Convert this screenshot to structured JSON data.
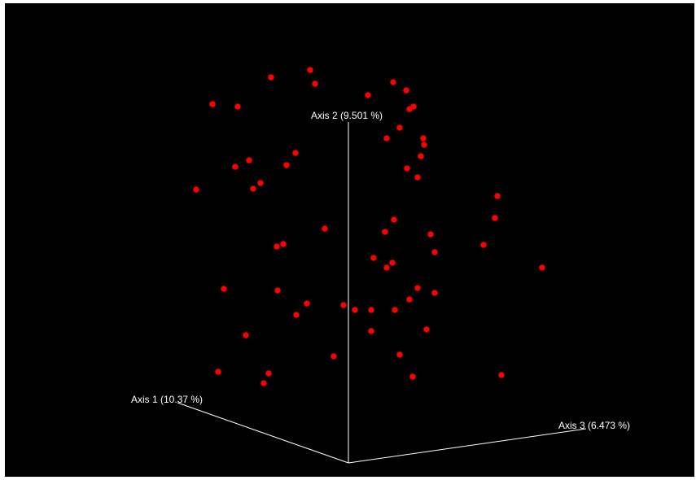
{
  "chart_data": {
    "type": "scatter",
    "title": "",
    "axes": {
      "axis1_label": "Axis 1 (10.37 %)",
      "axis2_label": "Axis 2 (9.501 %)",
      "axis3_label": "Axis 3 (6.473 %)"
    },
    "series": [
      {
        "color": "#ff0000",
        "points": [
          [
            381,
            86
          ],
          [
            333,
            95
          ],
          [
            387,
            103
          ],
          [
            483,
            101
          ],
          [
            499,
            111
          ],
          [
            452,
            117
          ],
          [
            261,
            128
          ],
          [
            292,
            131
          ],
          [
            508,
            131
          ],
          [
            503,
            134
          ],
          [
            491,
            157
          ],
          [
            475,
            170
          ],
          [
            520,
            170
          ],
          [
            521,
            178
          ],
          [
            363,
            188
          ],
          [
            517,
            192
          ],
          [
            306,
            197
          ],
          [
            289,
            205
          ],
          [
            352,
            203
          ],
          [
            500,
            207
          ],
          [
            513,
            218
          ],
          [
            320,
            225
          ],
          [
            311,
            232
          ],
          [
            241,
            233
          ],
          [
            611,
            241
          ],
          [
            608,
            268
          ],
          [
            484,
            270
          ],
          [
            399,
            281
          ],
          [
            473,
            285
          ],
          [
            529,
            288
          ],
          [
            348,
            300
          ],
          [
            340,
            303
          ],
          [
            594,
            301
          ],
          [
            534,
            310
          ],
          [
            459,
            317
          ],
          [
            482,
            323
          ],
          [
            475,
            329
          ],
          [
            666,
            329
          ],
          [
            275,
            355
          ],
          [
            341,
            357
          ],
          [
            513,
            354
          ],
          [
            534,
            360
          ],
          [
            503,
            368
          ],
          [
            377,
            373
          ],
          [
            422,
            375
          ],
          [
            436,
            381
          ],
          [
            456,
            381
          ],
          [
            485,
            381
          ],
          [
            364,
            387
          ],
          [
            524,
            405
          ],
          [
            456,
            407
          ],
          [
            302,
            412
          ],
          [
            410,
            438
          ],
          [
            491,
            436
          ],
          [
            268,
            457
          ],
          [
            330,
            459
          ],
          [
            507,
            463
          ],
          [
            616,
            461
          ],
          [
            324,
            471
          ]
        ]
      }
    ]
  }
}
